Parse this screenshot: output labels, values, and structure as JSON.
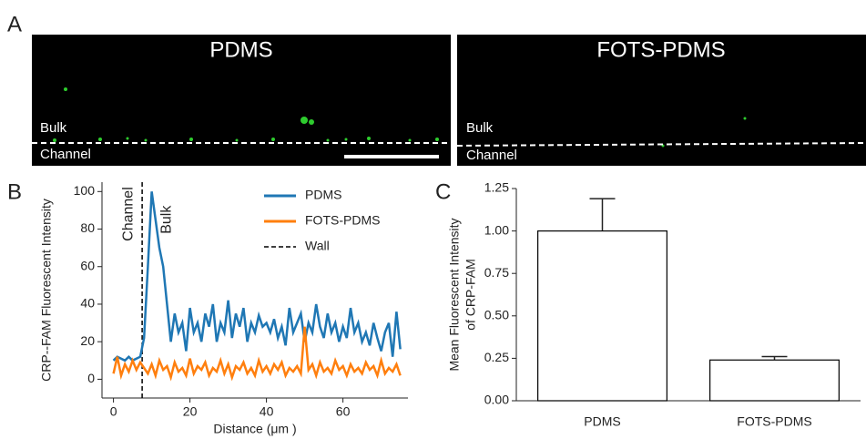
{
  "panel_labels": [
    "A",
    "B",
    "C"
  ],
  "panel_a": {
    "images": [
      {
        "title": "PDMS",
        "upper_label": "Bulk",
        "lower_label": "Channel"
      },
      {
        "title": "FOTS-PDMS",
        "upper_label": "Bulk",
        "lower_label": "Channel"
      }
    ]
  },
  "chart_data": [
    {
      "type": "line",
      "xlabel": "Distance (μm )",
      "ylabel": "CRP--FAM Fluorescent Intensity",
      "x": [
        0,
        1,
        2,
        3,
        4,
        5,
        6,
        7,
        8,
        9,
        10,
        11,
        12,
        13,
        14,
        15,
        16,
        17,
        18,
        19,
        20,
        21,
        22,
        23,
        24,
        25,
        26,
        27,
        28,
        29,
        30,
        31,
        32,
        33,
        34,
        35,
        36,
        37,
        38,
        39,
        40,
        41,
        42,
        43,
        44,
        45,
        46,
        47,
        48,
        49,
        50,
        51,
        52,
        53,
        54,
        55,
        56,
        57,
        58,
        59,
        60,
        61,
        62,
        63,
        64,
        65,
        66,
        67,
        68,
        69,
        70,
        71,
        72,
        73,
        74,
        75
      ],
      "series": [
        {
          "name": "PDMS",
          "color": "#1f77b4",
          "values": [
            10,
            12,
            11,
            10,
            12,
            10,
            11,
            12,
            22,
            60,
            100,
            85,
            70,
            60,
            40,
            20,
            35,
            25,
            30,
            15,
            38,
            25,
            30,
            20,
            35,
            28,
            40,
            20,
            30,
            25,
            42,
            22,
            35,
            28,
            38,
            20,
            30,
            25,
            34,
            28,
            30,
            25,
            32,
            22,
            28,
            18,
            38,
            25,
            30,
            35,
            20,
            30,
            25,
            40,
            28,
            22,
            35,
            25,
            30,
            20,
            28,
            22,
            38,
            25,
            30,
            20,
            25,
            18,
            30,
            22,
            15,
            25,
            30,
            12,
            36,
            16
          ]
        },
        {
          "name": "FOTS-PDMS",
          "color": "#ff7f0e",
          "values": [
            3,
            12,
            2,
            8,
            4,
            10,
            5,
            9,
            6,
            3,
            8,
            2,
            10,
            5,
            7,
            1,
            9,
            4,
            6,
            2,
            11,
            3,
            7,
            5,
            9,
            2,
            6,
            4,
            10,
            3,
            8,
            1,
            7,
            5,
            9,
            3,
            6,
            2,
            10,
            4,
            7,
            3,
            8,
            5,
            9,
            2,
            6,
            4,
            7,
            3,
            28,
            5,
            8,
            2,
            9,
            4,
            6,
            3,
            10,
            5,
            7,
            2,
            8,
            4,
            6,
            3,
            9,
            5,
            7,
            2,
            10,
            3,
            6,
            4,
            8,
            2
          ]
        }
      ],
      "wall": {
        "name": "Wall",
        "x": 7.5,
        "color": "#000000"
      },
      "annotations": [
        {
          "text": "Channel",
          "x": 4,
          "y": 88
        },
        {
          "text": "Bulk",
          "x": 14,
          "y": 85
        }
      ],
      "xlim": [
        -3,
        77
      ],
      "ylim": [
        -10,
        105
      ],
      "xticks": [
        0,
        20,
        40,
        60
      ],
      "yticks": [
        0,
        20,
        40,
        60,
        80,
        100
      ],
      "legend": "upper right"
    },
    {
      "type": "bar",
      "ylabel": [
        "Mean Fluorescent Intensity",
        "of CRP-FAM"
      ],
      "categories": [
        "PDMS",
        "FOTS-PDMS"
      ],
      "values": [
        1.0,
        0.24
      ],
      "errors": [
        0.19,
        0.02
      ],
      "color": "#ffffff",
      "edgecolor": "#000000",
      "ylim": [
        0,
        1.25
      ],
      "yticks": [
        {
          "value": 0,
          "label": "0.00"
        },
        {
          "value": 0.25,
          "label": "0.25"
        },
        {
          "value": 0.5,
          "label": "0.50"
        },
        {
          "value": 0.75,
          "label": "0.75"
        },
        {
          "value": 1,
          "label": "1.00"
        },
        {
          "value": 1.25,
          "label": "1.25"
        }
      ]
    }
  ]
}
